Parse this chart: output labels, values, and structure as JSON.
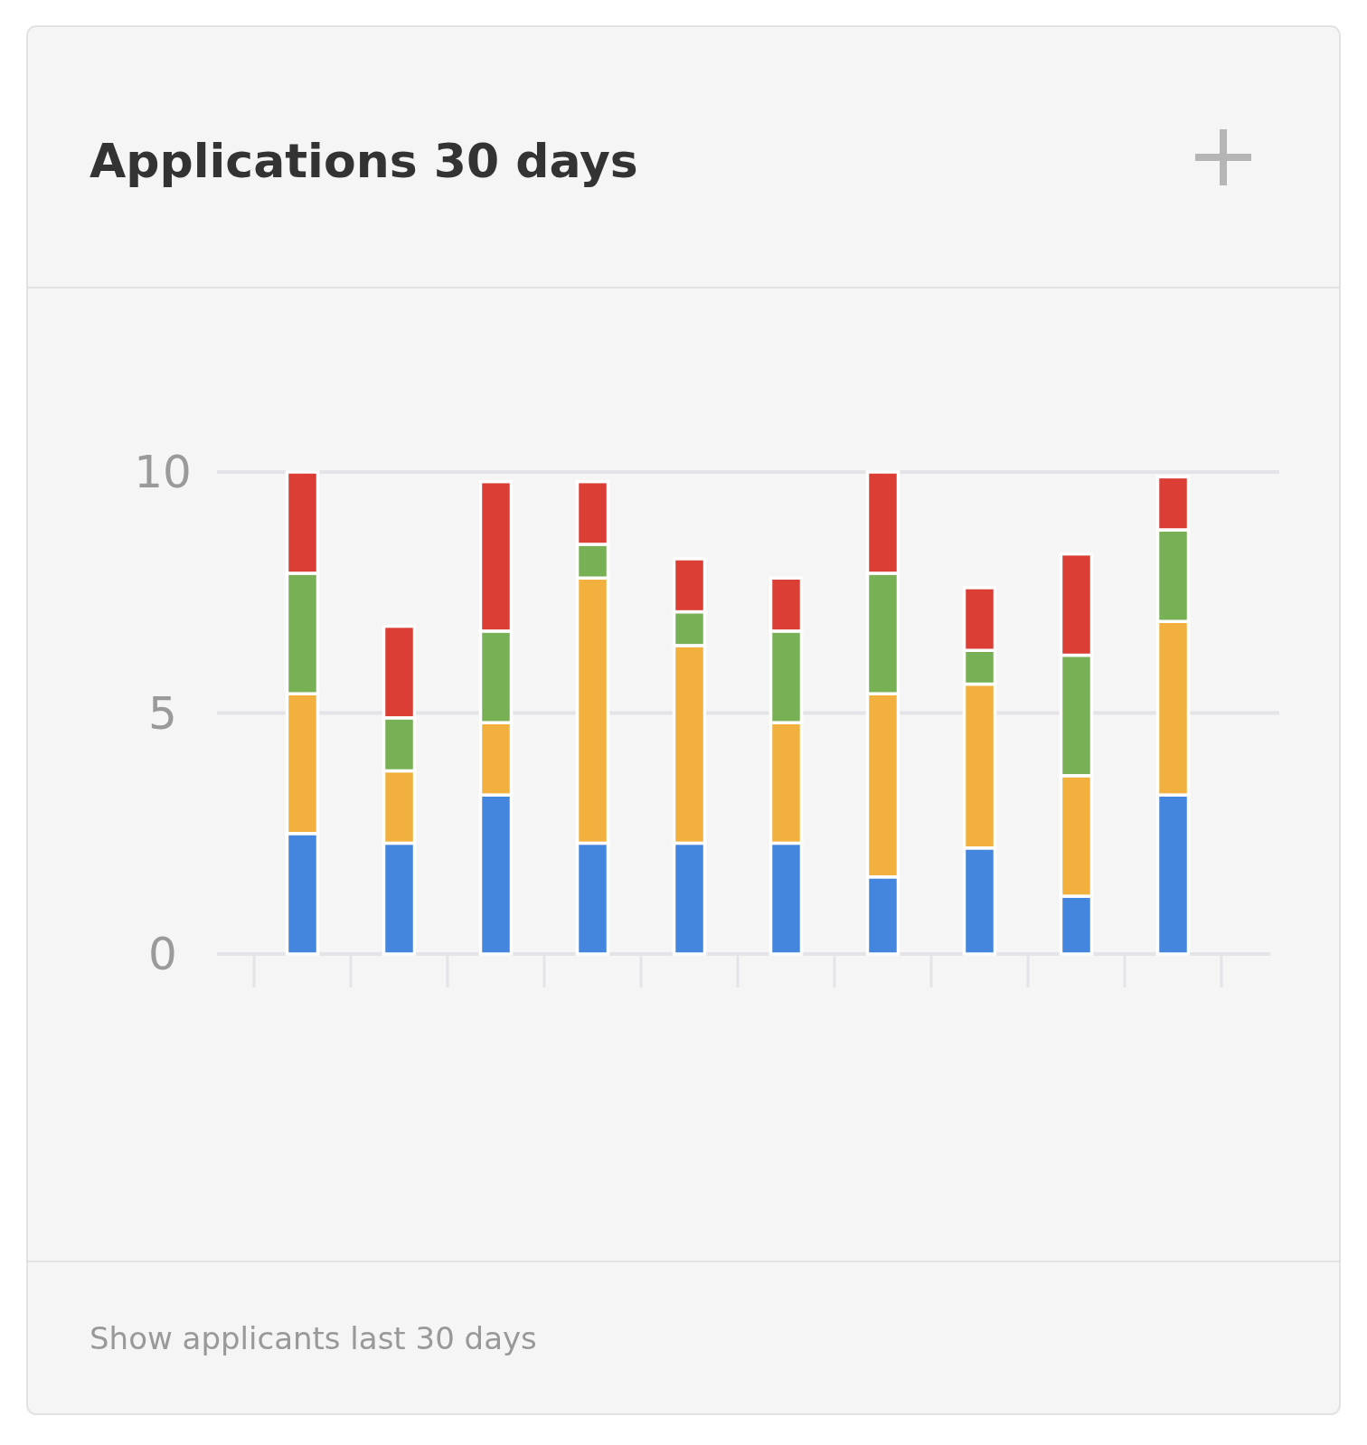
{
  "chart_data": {
    "type": "bar",
    "title": "Applications 30 days",
    "annotations": [
      "Show applicants last 30 days"
    ],
    "categories": [
      null,
      null,
      null,
      null,
      null,
      null,
      null,
      null,
      null,
      null
    ],
    "stacked": true,
    "grid": "y",
    "tick_labels": "y",
    "ylim": [
      0,
      10
    ],
    "yticks": [
      0,
      5,
      10
    ],
    "series": [
      {
        "color": "#4486dd",
        "values": [
          2.5,
          2.3,
          3.3,
          2.3,
          2.3,
          2.3,
          1.6,
          2.2,
          1.2,
          3.3
        ]
      },
      {
        "color": "#f2b13e",
        "values": [
          2.9,
          1.5,
          1.5,
          5.5,
          4.1,
          2.5,
          3.8,
          3.4,
          2.5,
          3.6
        ]
      },
      {
        "color": "#78b155",
        "values": [
          2.5,
          1.1,
          1.9,
          0.7,
          0.7,
          1.9,
          2.5,
          0.7,
          2.5,
          1.9
        ]
      },
      {
        "color": "#db3e35",
        "values": [
          2.1,
          1.9,
          3.1,
          1.3,
          1.1,
          1.1,
          2.1,
          1.3,
          2.1,
          1.1
        ]
      }
    ]
  }
}
